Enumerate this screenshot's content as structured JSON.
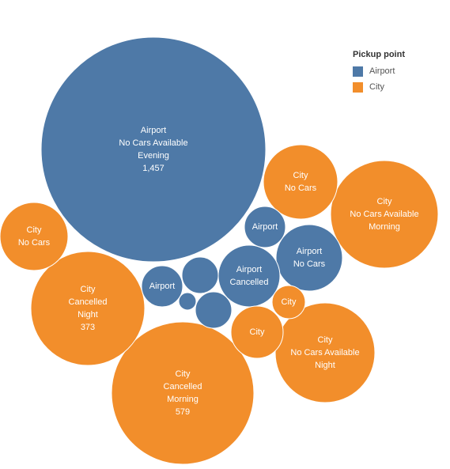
{
  "chart_data": {
    "type": "bubble",
    "title": "",
    "legend": {
      "title": "Pickup point",
      "placement": "top-right",
      "entries": [
        {
          "name": "Airport",
          "color": "#4e79a7"
        },
        {
          "name": "City",
          "color": "#f28e2b"
        }
      ]
    },
    "bubbles": [
      {
        "pickup": "Airport",
        "status": "No Cars Available",
        "slot": "Evening",
        "count": 1457,
        "labels": [
          "Airport",
          "No Cars Available",
          "Evening",
          "1,457"
        ]
      },
      {
        "pickup": "City",
        "status": "Cancelled",
        "slot": "Morning",
        "count": 579,
        "labels": [
          "City",
          "Cancelled",
          "Morning",
          "579"
        ]
      },
      {
        "pickup": "City",
        "status": "Cancelled",
        "slot": "Night",
        "count": 373,
        "labels": [
          "City",
          "Cancelled",
          "Night",
          "373"
        ]
      },
      {
        "pickup": "City",
        "status": "No Cars Available",
        "slot": "Morning",
        "count": 330,
        "labels": [
          "City",
          "No Cars Available",
          "Morning"
        ]
      },
      {
        "pickup": "City",
        "status": "No Cars Available",
        "slot": "Night",
        "count": 290,
        "labels": [
          "City",
          "No Cars Available",
          "Night"
        ]
      },
      {
        "pickup": "City",
        "status": "No Cars Available",
        "count": 150,
        "labels": [
          "City",
          "No Cars"
        ]
      },
      {
        "pickup": "City",
        "status": "No Cars Available",
        "count": 130,
        "labels": [
          "City",
          "No Cars"
        ]
      },
      {
        "pickup": "Airport",
        "status": "No Cars Available",
        "count": 120,
        "labels": [
          "Airport",
          "No Cars"
        ]
      },
      {
        "pickup": "Airport",
        "status": "Cancelled",
        "count": 105,
        "labels": [
          "Airport",
          "Cancelled"
        ]
      },
      {
        "pickup": "City",
        "count": 77,
        "labels": [
          "City"
        ]
      },
      {
        "pickup": "Airport",
        "count": 49,
        "labels": [
          "Airport"
        ]
      },
      {
        "pickup": "Airport",
        "count": 46,
        "labels": [
          "Airport"
        ]
      },
      {
        "pickup": "Airport",
        "count": 39,
        "labels": []
      },
      {
        "pickup": "Airport",
        "count": 36,
        "labels": []
      },
      {
        "pickup": "City",
        "count": 32,
        "labels": [
          "City"
        ]
      },
      {
        "pickup": "Airport",
        "count": 11,
        "labels": []
      }
    ]
  }
}
